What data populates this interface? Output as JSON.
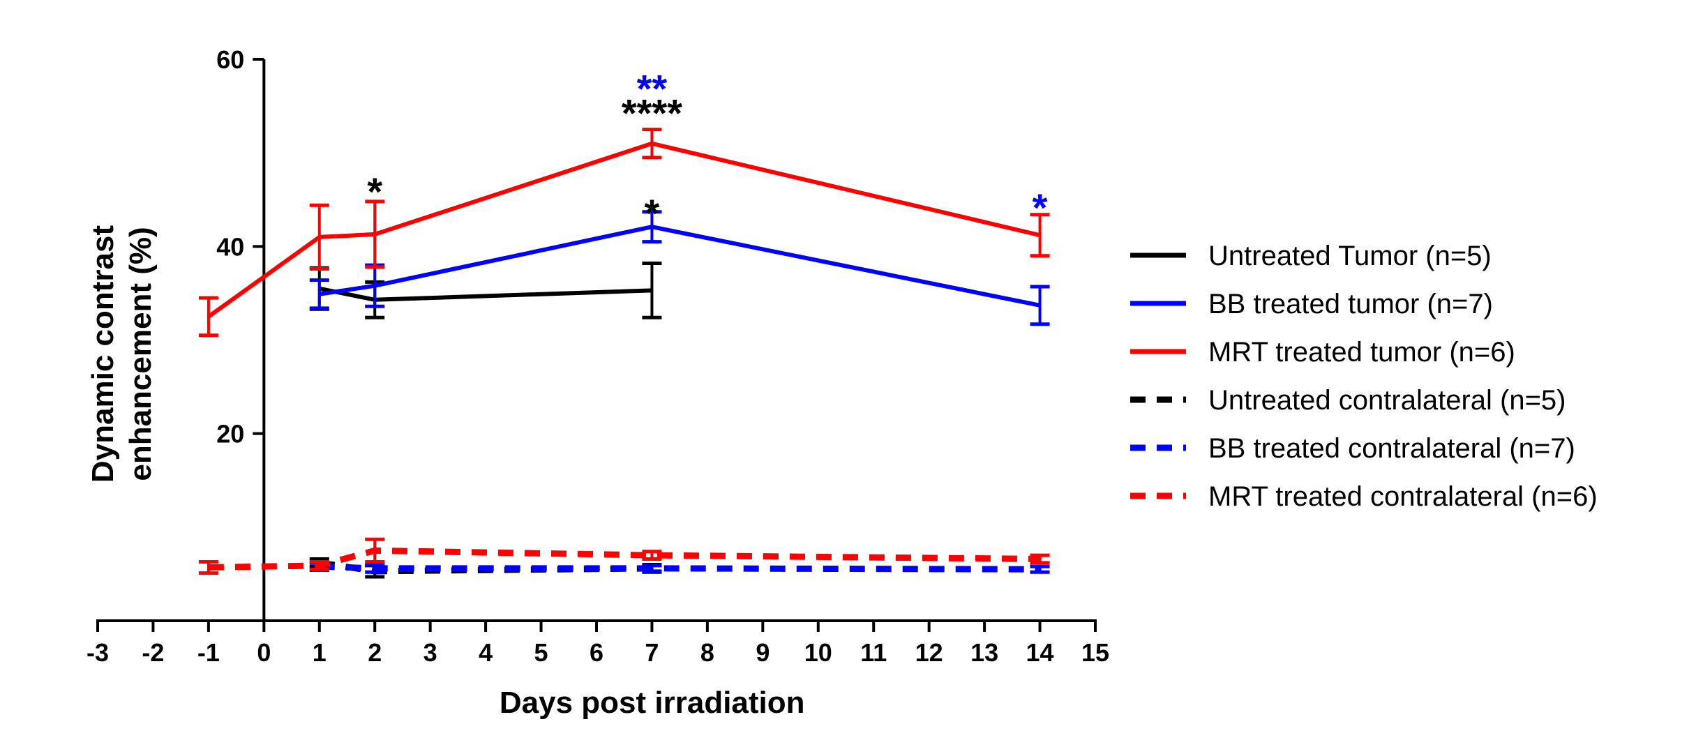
{
  "chart_data": {
    "type": "line",
    "xlabel": "Days post irradiation",
    "ylabel_lines": [
      "Dynamic contrast",
      "enhancement (%)"
    ],
    "xlim": [
      -3,
      15
    ],
    "ylim": [
      0,
      60
    ],
    "xticks": [
      -3,
      -2,
      -1,
      0,
      1,
      2,
      3,
      4,
      5,
      6,
      7,
      8,
      9,
      10,
      11,
      12,
      13,
      14,
      15
    ],
    "yticks_labeled": [
      20,
      40,
      60
    ],
    "yticks_all": [
      0,
      20,
      40,
      60
    ],
    "legend_position": "right",
    "series": [
      {
        "name": "Untreated Tumor (n=5)",
        "color": "#000000",
        "style": "solid",
        "x": [
          1,
          2,
          7
        ],
        "y": [
          35.5,
          34.3,
          35.3
        ],
        "err": [
          2.2,
          1.9,
          2.9
        ]
      },
      {
        "name": "BB treated tumor (n=7)",
        "color": "#0000ff",
        "style": "solid",
        "x": [
          1,
          2,
          7,
          14
        ],
        "y": [
          34.9,
          35.8,
          42.1,
          33.7
        ],
        "err": [
          1.5,
          2.2,
          1.6,
          2.0
        ]
      },
      {
        "name": "MRT treated tumor (n=6)",
        "color": "#ff0000",
        "style": "solid",
        "x": [
          -1,
          1,
          2,
          7,
          14
        ],
        "y": [
          32.5,
          41.0,
          41.3,
          51.0,
          41.2
        ],
        "err": [
          2.0,
          3.4,
          3.5,
          1.5,
          2.2
        ]
      },
      {
        "name": "Untreated contralateral (n=5)",
        "color": "#000000",
        "style": "dashed",
        "x": [
          1,
          2,
          7
        ],
        "y": [
          6.2,
          5.3,
          5.6
        ],
        "err": [
          0.4,
          0.6,
          0.4
        ]
      },
      {
        "name": "BB treated contralateral (n=7)",
        "color": "#0000ff",
        "style": "dashed",
        "x": [
          1,
          2,
          7,
          14
        ],
        "y": [
          5.8,
          5.6,
          5.6,
          5.5
        ],
        "err": [
          0.4,
          0.4,
          0.3,
          0.3
        ]
      },
      {
        "name": "MRT treated contralateral (n=6)",
        "color": "#ff0000",
        "style": "dashed",
        "x": [
          -1,
          1,
          2,
          7,
          14
        ],
        "y": [
          5.7,
          5.9,
          7.5,
          7.0,
          6.6
        ],
        "err": [
          0.6,
          0.4,
          1.2,
          0.4,
          0.4
        ]
      }
    ],
    "annotations": [
      {
        "text": "*",
        "x": 2,
        "y": 46.2,
        "color": "#000000"
      },
      {
        "text": "**",
        "x": 7,
        "y": 57.2,
        "color": "#0000ff"
      },
      {
        "text": "****",
        "x": 7,
        "y": 54.6,
        "color": "#000000"
      },
      {
        "text": "*",
        "x": 7,
        "y": 43.9,
        "color": "#000000"
      },
      {
        "text": "*",
        "x": 14,
        "y": 44.5,
        "color": "#0000ff"
      }
    ]
  }
}
